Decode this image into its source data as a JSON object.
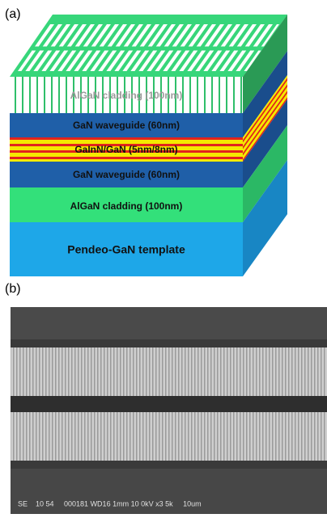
{
  "panel_a": {
    "label": "(a)",
    "layers": [
      "AlGaN cladding (100nm)",
      "GaN waveguide (60nm)",
      "GaInN/GaN (5nm/8nm)",
      "GaN waveguide (60nm)",
      "AlGaN cladding (100nm)",
      "Pendeo-GaN template"
    ]
  },
  "panel_b": {
    "label": "(b)",
    "caption": "SE    10 54     000181 WD16 1mm 10 0kV x3 5k     10um"
  }
}
